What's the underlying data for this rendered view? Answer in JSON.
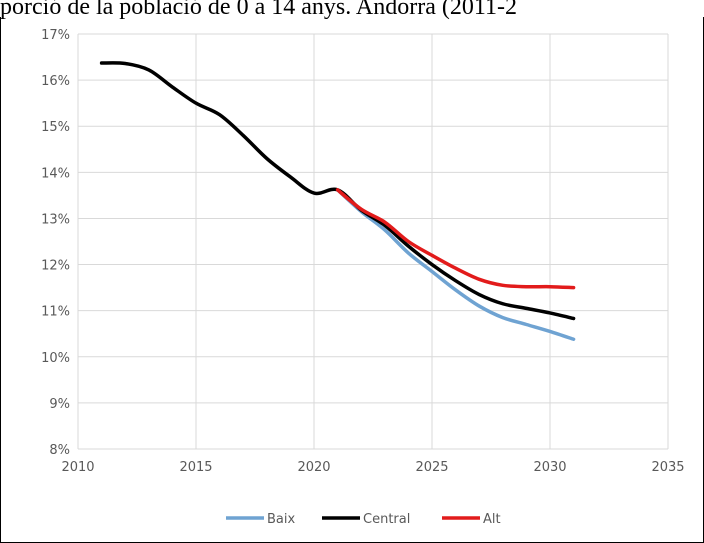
{
  "chart_data": {
    "type": "line",
    "title": "porció de la població de 0 a 14 anys. Andorra (2011-2",
    "xlabel": "",
    "ylabel": "",
    "xlim": [
      2010,
      2035
    ],
    "ylim": [
      8,
      17
    ],
    "x_ticks": [
      "2010",
      "2015",
      "2020",
      "2025",
      "2030",
      "2035"
    ],
    "y_ticks": [
      "8%",
      "9%",
      "10%",
      "11%",
      "12%",
      "13%",
      "14%",
      "15%",
      "16%",
      "17%"
    ],
    "grid": true,
    "legend_position": "bottom",
    "series": [
      {
        "name": "Baix",
        "color": "#6fa3d2",
        "points": [
          [
            2021,
            13.62
          ],
          [
            2022,
            13.15
          ],
          [
            2023,
            12.75
          ],
          [
            2024,
            12.25
          ],
          [
            2025,
            11.85
          ],
          [
            2026,
            11.45
          ],
          [
            2027,
            11.1
          ],
          [
            2028,
            10.85
          ],
          [
            2029,
            10.7
          ],
          [
            2030,
            10.55
          ],
          [
            2031,
            10.38
          ]
        ]
      },
      {
        "name": "Central",
        "color": "#000000",
        "points": [
          [
            2011,
            16.37
          ],
          [
            2012,
            16.36
          ],
          [
            2013,
            16.22
          ],
          [
            2014,
            15.85
          ],
          [
            2015,
            15.5
          ],
          [
            2016,
            15.25
          ],
          [
            2017,
            14.8
          ],
          [
            2018,
            14.3
          ],
          [
            2019,
            13.9
          ],
          [
            2020,
            13.55
          ],
          [
            2021,
            13.62
          ],
          [
            2022,
            13.18
          ],
          [
            2023,
            12.85
          ],
          [
            2024,
            12.4
          ],
          [
            2025,
            12.0
          ],
          [
            2026,
            11.65
          ],
          [
            2027,
            11.35
          ],
          [
            2028,
            11.15
          ],
          [
            2029,
            11.05
          ],
          [
            2030,
            10.95
          ],
          [
            2031,
            10.83
          ]
        ]
      },
      {
        "name": "Alt",
        "color": "#e21b1b",
        "points": [
          [
            2021,
            13.62
          ],
          [
            2022,
            13.2
          ],
          [
            2023,
            12.92
          ],
          [
            2024,
            12.5
          ],
          [
            2025,
            12.2
          ],
          [
            2026,
            11.92
          ],
          [
            2027,
            11.68
          ],
          [
            2028,
            11.55
          ],
          [
            2029,
            11.52
          ],
          [
            2030,
            11.52
          ],
          [
            2031,
            11.5
          ]
        ]
      }
    ]
  }
}
